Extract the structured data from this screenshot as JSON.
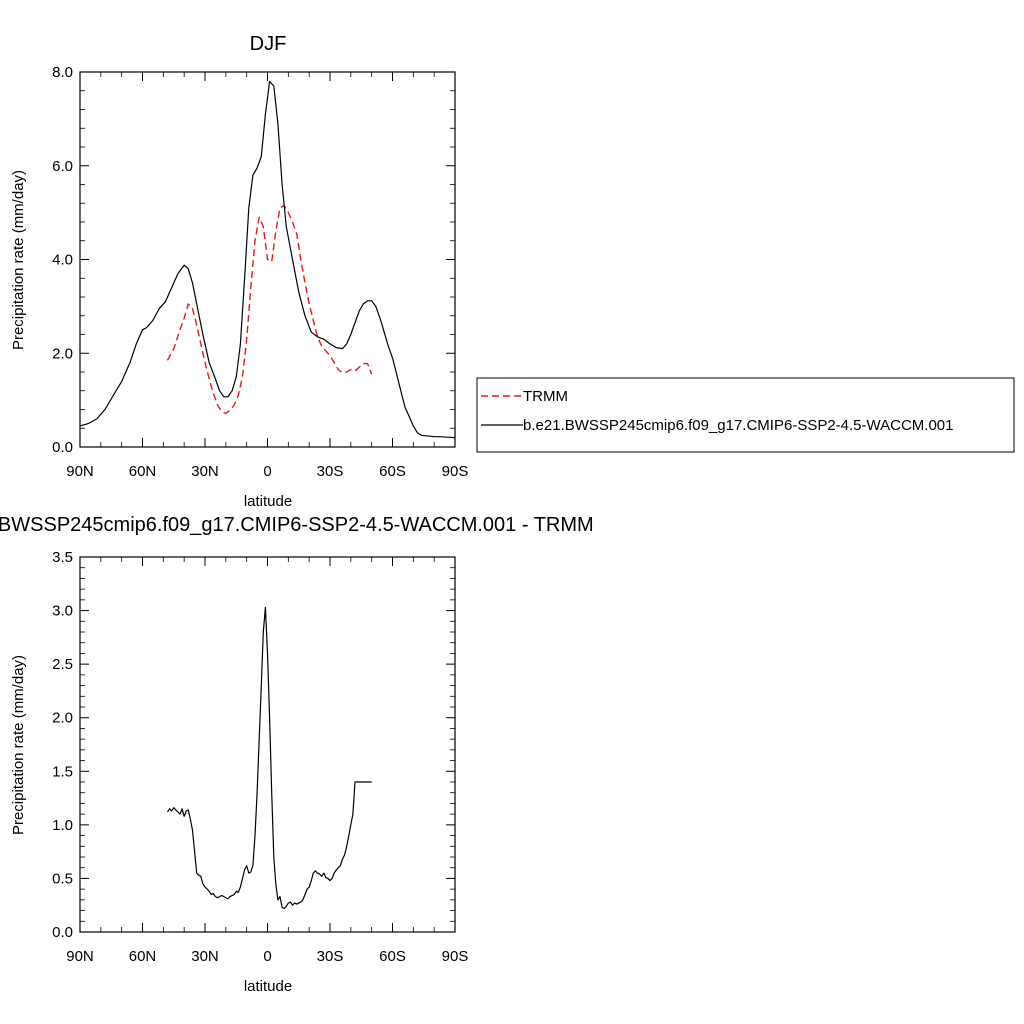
{
  "chart_data": [
    {
      "type": "line",
      "title": "DJF",
      "xlabel": "latitude",
      "ylabel": "Precipitation rate (mm/day)",
      "xlim": [
        90,
        -90
      ],
      "ylim": [
        0,
        8
      ],
      "x_ticks": [
        90,
        60,
        30,
        0,
        -30,
        -60,
        -90
      ],
      "x_tick_labels": [
        "90N",
        "60N",
        "30N",
        "0",
        "30S",
        "60S",
        "90S"
      ],
      "y_ticks": [
        0,
        2,
        4,
        6,
        8
      ],
      "y_tick_labels": [
        "0.0",
        "2.0",
        "4.0",
        "6.0",
        "8.0"
      ],
      "legend_position": "right",
      "series": [
        {
          "name": "TRMM",
          "color": "#e31a1c",
          "style": "dashed",
          "x": [
            48,
            45,
            42,
            40,
            38,
            36,
            34,
            32,
            30,
            28,
            26,
            24,
            22,
            20,
            18,
            16,
            14,
            12,
            10,
            8,
            6,
            4,
            2,
            0,
            -2,
            -4,
            -6,
            -8,
            -10,
            -12,
            -14,
            -16,
            -18,
            -20,
            -22,
            -24,
            -26,
            -28,
            -30,
            -32,
            -34,
            -36,
            -38,
            -40,
            -42,
            -44,
            -46,
            -48,
            -50
          ],
          "y": [
            1.85,
            2.1,
            2.5,
            2.75,
            3.05,
            2.95,
            2.6,
            2.2,
            1.8,
            1.45,
            1.15,
            0.9,
            0.75,
            0.72,
            0.78,
            0.9,
            1.1,
            1.5,
            2.3,
            3.4,
            4.4,
            4.9,
            4.7,
            4.0,
            3.95,
            4.6,
            5.1,
            5.15,
            5.0,
            4.8,
            4.55,
            4.0,
            3.5,
            3.05,
            2.7,
            2.35,
            2.15,
            2.05,
            1.95,
            1.8,
            1.65,
            1.58,
            1.6,
            1.65,
            1.62,
            1.7,
            1.78,
            1.78,
            1.55
          ]
        },
        {
          "name": "b.e21.BWSSP245cmip6.f09_g17.CMIP6-SSP2-4.5-WACCM.001",
          "color": "#000000",
          "style": "solid",
          "x": [
            90,
            86,
            82,
            78,
            74,
            70,
            66,
            63,
            60,
            58,
            55,
            52,
            49,
            46,
            43,
            40,
            38,
            36,
            34,
            31,
            28,
            25,
            23,
            21,
            19,
            17,
            15,
            13,
            11,
            9,
            7,
            5,
            3,
            1,
            -1,
            -3,
            -5,
            -7,
            -9,
            -12,
            -15,
            -18,
            -21,
            -24,
            -27,
            -30,
            -33,
            -36,
            -38,
            -40,
            -42,
            -44,
            -46,
            -48,
            -50,
            -52,
            -54,
            -56,
            -58,
            -60,
            -62,
            -64,
            -66,
            -68,
            -70,
            -72,
            -74,
            -76,
            -78,
            -80,
            -83,
            -86,
            -90
          ],
          "y": [
            0.45,
            0.5,
            0.6,
            0.8,
            1.1,
            1.4,
            1.8,
            2.2,
            2.5,
            2.55,
            2.7,
            2.95,
            3.1,
            3.4,
            3.7,
            3.88,
            3.8,
            3.5,
            3.05,
            2.4,
            1.8,
            1.45,
            1.2,
            1.07,
            1.07,
            1.2,
            1.5,
            2.2,
            3.6,
            5.1,
            5.8,
            5.95,
            6.2,
            7.1,
            7.8,
            7.7,
            6.9,
            5.6,
            4.7,
            4.0,
            3.3,
            2.8,
            2.45,
            2.35,
            2.3,
            2.2,
            2.12,
            2.1,
            2.2,
            2.4,
            2.65,
            2.9,
            3.05,
            3.12,
            3.12,
            3.0,
            2.75,
            2.45,
            2.15,
            1.9,
            1.55,
            1.2,
            0.85,
            0.65,
            0.45,
            0.3,
            0.25,
            0.24,
            0.23,
            0.22,
            0.22,
            0.21,
            0.2
          ]
        }
      ]
    },
    {
      "type": "line",
      "title": "b.e21.BWSSP245cmip6.f09_g17.CMIP6-SSP2-4.5-WACCM.001 - TRMM",
      "xlabel": "latitude",
      "ylabel": "Precipitation rate (mm/day)",
      "xlim": [
        90,
        -90
      ],
      "ylim": [
        0,
        3.5
      ],
      "x_ticks": [
        90,
        60,
        30,
        0,
        -30,
        -60,
        -90
      ],
      "x_tick_labels": [
        "90N",
        "60N",
        "30N",
        "0",
        "30S",
        "60S",
        "90S"
      ],
      "y_ticks": [
        0,
        0.5,
        1.0,
        1.5,
        2.0,
        2.5,
        3.0,
        3.5
      ],
      "y_tick_labels": [
        "0.0",
        "0.5",
        "1.0",
        "1.5",
        "2.0",
        "2.5",
        "3.0",
        "3.5"
      ],
      "series": [
        {
          "color": "#000000",
          "style": "solid",
          "x": [
            48,
            47,
            46,
            45,
            44,
            43,
            42,
            41,
            40,
            39,
            38,
            37,
            36,
            35,
            34,
            33,
            32,
            31,
            30,
            29,
            28,
            27,
            26,
            25,
            24,
            23,
            22,
            21,
            20,
            19,
            18,
            17,
            16,
            15,
            14,
            13,
            12,
            11,
            10,
            9,
            8,
            7,
            6,
            5,
            4,
            3,
            2,
            1,
            0,
            -1,
            -2,
            -3,
            -4,
            -5,
            -6,
            -7,
            -8,
            -9,
            -10,
            -11,
            -12,
            -13,
            -14,
            -15,
            -16,
            -17,
            -18,
            -19,
            -20,
            -21,
            -22,
            -23,
            -24,
            -25,
            -26,
            -27,
            -28,
            -29,
            -30,
            -31,
            -32,
            -33,
            -34,
            -35,
            -36,
            -37,
            -38,
            -39,
            -40,
            -41,
            -42,
            -43,
            -44,
            -45,
            -46,
            -47,
            -48,
            -49,
            -50
          ],
          "y": [
            1.12,
            1.15,
            1.13,
            1.16,
            1.14,
            1.12,
            1.1,
            1.15,
            1.08,
            1.13,
            1.14,
            1.05,
            0.95,
            0.75,
            0.55,
            0.53,
            0.52,
            0.45,
            0.42,
            0.4,
            0.38,
            0.35,
            0.36,
            0.33,
            0.32,
            0.33,
            0.34,
            0.33,
            0.32,
            0.31,
            0.33,
            0.34,
            0.35,
            0.38,
            0.37,
            0.42,
            0.5,
            0.58,
            0.62,
            0.55,
            0.56,
            0.62,
            0.9,
            1.3,
            1.8,
            2.3,
            2.8,
            3.03,
            2.6,
            2.0,
            1.3,
            0.7,
            0.45,
            0.3,
            0.33,
            0.23,
            0.22,
            0.24,
            0.27,
            0.28,
            0.25,
            0.27,
            0.26,
            0.27,
            0.28,
            0.3,
            0.35,
            0.4,
            0.42,
            0.48,
            0.55,
            0.57,
            0.55,
            0.54,
            0.52,
            0.55,
            0.51,
            0.5,
            0.48,
            0.5,
            0.55,
            0.58,
            0.6,
            0.62,
            0.68,
            0.72,
            0.8,
            0.9,
            1.0,
            1.1,
            1.4,
            1.4,
            1.4,
            1.4,
            1.4,
            1.4,
            1.4,
            1.4,
            1.4
          ]
        }
      ]
    }
  ]
}
